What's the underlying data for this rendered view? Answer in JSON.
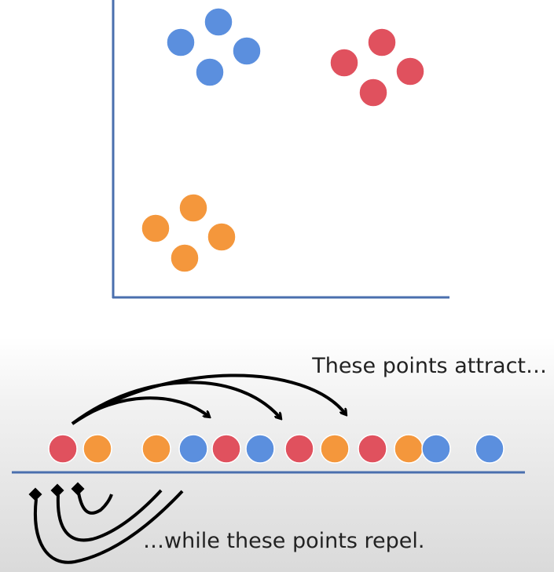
{
  "colors": {
    "axis": "#4a6fae",
    "blue": "#5b8fde",
    "red": "#e0515e",
    "orange": "#f4973c",
    "arrow": "#000000"
  },
  "scatter": {
    "clusters": [
      {
        "color": "blue",
        "points": 4
      },
      {
        "color": "red",
        "points": 4
      },
      {
        "color": "orange",
        "points": 4
      }
    ]
  },
  "line": {
    "points": [
      "red",
      "orange",
      "orange",
      "blue",
      "red",
      "blue",
      "red",
      "orange",
      "red",
      "orange",
      "blue",
      "blue"
    ]
  },
  "captions": {
    "attract": "These points attract…",
    "repel": "…while these points repel."
  }
}
